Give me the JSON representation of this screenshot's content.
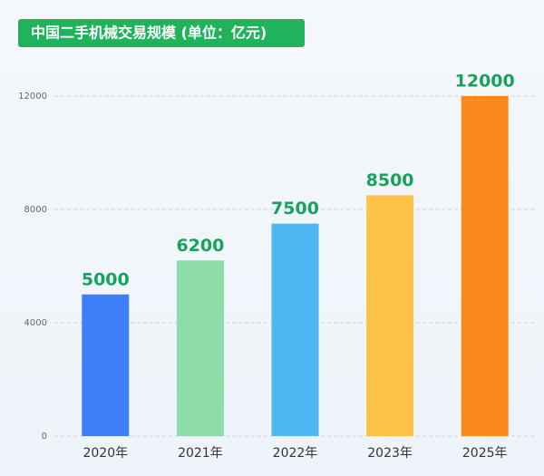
{
  "chart_data": {
    "type": "bar",
    "title": "中国二手机械交易规模 (单位：亿元)",
    "categories": [
      "2020年",
      "2021年",
      "2022年",
      "2023年",
      "2025年"
    ],
    "values": [
      5000,
      6200,
      7500,
      8500,
      12000
    ],
    "colors": [
      "#3d7ff7",
      "#8edca8",
      "#4fb8f2",
      "#ffc349",
      "#fa8a1d"
    ],
    "ylim": [
      0,
      12000
    ],
    "yticks": [
      0,
      4000,
      8000,
      12000
    ],
    "grid": true
  }
}
